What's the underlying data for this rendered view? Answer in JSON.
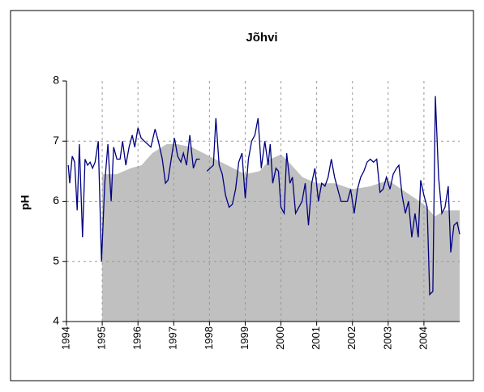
{
  "chart_data": {
    "type": "line",
    "title": "Jõhvi",
    "y_label": "pH",
    "xlim": [
      1994,
      2005
    ],
    "xticks": [
      1994,
      1995,
      1996,
      1997,
      1998,
      1999,
      2000,
      2001,
      2002,
      2003,
      2004
    ],
    "ylim": [
      4,
      8
    ],
    "yticks": [
      4,
      5,
      6,
      7,
      8
    ],
    "grid": true,
    "series": [
      {
        "kind": "area",
        "color": "#c0c0c0",
        "x": [
          1995.0,
          1995.4,
          1995.8,
          1996.1,
          1996.4,
          1996.8,
          1997.1,
          1997.5,
          1998.0,
          1998.5,
          1999.0,
          1999.4,
          1999.7,
          2000.0,
          2000.3,
          2000.6,
          2001.0,
          2001.5,
          2002.0,
          2002.5,
          2003.0,
          2003.5,
          2004.0,
          2004.3,
          2004.6,
          2005.0
        ],
        "values": [
          6.45,
          6.45,
          6.55,
          6.6,
          6.8,
          6.95,
          6.95,
          6.9,
          6.75,
          6.6,
          6.45,
          6.5,
          6.7,
          6.78,
          6.6,
          6.4,
          6.3,
          6.3,
          6.2,
          6.25,
          6.35,
          6.15,
          5.95,
          5.75,
          5.85,
          5.85
        ]
      },
      {
        "kind": "line",
        "color": "#000080",
        "x": [
          1994.05,
          1994.09,
          1994.16,
          1994.23,
          1994.3,
          1994.36,
          1994.45,
          1994.52,
          1994.59,
          1994.66,
          1994.73,
          1994.8,
          1994.89,
          1994.98,
          1995.07,
          1995.16,
          1995.25,
          1995.32,
          1995.41,
          1995.5,
          1995.57,
          1995.66,
          1995.75,
          1995.84,
          1995.91,
          1996.0,
          1996.09,
          1996.18,
          1996.27,
          1996.36,
          1996.48,
          1996.57,
          1996.68,
          1996.77,
          1996.84,
          1996.93,
          1997.02,
          1997.11,
          1997.2,
          1997.27,
          1997.36,
          1997.45,
          1997.55,
          1997.64,
          1997.73,
          1997.83,
          1997.93,
          1998.02,
          1998.11,
          1998.18,
          1998.27,
          1998.36,
          1998.45,
          1998.55,
          1998.64,
          1998.73,
          1998.82,
          1998.91,
          1999.0,
          1999.09,
          1999.18,
          1999.27,
          1999.36,
          1999.45,
          1999.55,
          1999.64,
          1999.7,
          1999.77,
          1999.86,
          1999.93,
          2000.0,
          2000.09,
          2000.16,
          2000.25,
          2000.32,
          2000.41,
          2000.5,
          2000.59,
          2000.68,
          2000.77,
          2000.86,
          2000.95,
          2001.05,
          2001.14,
          2001.23,
          2001.32,
          2001.41,
          2001.5,
          2001.59,
          2001.68,
          2001.77,
          2001.86,
          2001.95,
          2002.05,
          2002.14,
          2002.23,
          2002.32,
          2002.41,
          2002.5,
          2002.59,
          2002.68,
          2002.77,
          2002.86,
          2002.95,
          2003.05,
          2003.14,
          2003.23,
          2003.3,
          2003.39,
          2003.48,
          2003.57,
          2003.66,
          2003.75,
          2003.84,
          2003.91,
          2004.0,
          2004.09,
          2004.16,
          2004.25,
          2004.32,
          2004.41,
          2004.5,
          2004.59,
          2004.68,
          2004.75,
          2004.84,
          2004.93,
          2005.0
        ],
        "values": [
          6.6,
          6.3,
          6.75,
          6.65,
          5.85,
          6.95,
          5.4,
          6.7,
          6.6,
          6.65,
          6.55,
          6.65,
          7.0,
          5.0,
          6.3,
          6.95,
          6.0,
          6.9,
          6.7,
          6.7,
          7.0,
          6.6,
          6.9,
          7.1,
          6.9,
          7.22,
          7.05,
          7.0,
          6.95,
          6.9,
          7.2,
          7.0,
          6.7,
          6.3,
          6.35,
          6.7,
          7.05,
          6.75,
          6.65,
          6.8,
          6.6,
          7.1,
          6.55,
          6.7,
          6.7,
          null,
          6.5,
          6.55,
          6.6,
          7.38,
          6.6,
          6.45,
          6.1,
          5.9,
          5.95,
          6.2,
          6.65,
          6.8,
          6.05,
          6.7,
          7.0,
          7.1,
          7.38,
          6.55,
          7.0,
          6.6,
          6.95,
          6.3,
          6.55,
          6.5,
          5.9,
          5.8,
          6.8,
          6.3,
          6.4,
          5.8,
          5.9,
          6.0,
          6.3,
          5.6,
          6.3,
          6.55,
          6.0,
          6.3,
          6.25,
          6.4,
          6.7,
          6.4,
          6.2,
          6.0,
          6.0,
          6.0,
          6.2,
          5.8,
          6.2,
          6.4,
          6.5,
          6.65,
          6.7,
          6.65,
          6.7,
          6.15,
          6.2,
          6.4,
          6.2,
          6.45,
          6.55,
          6.6,
          6.1,
          5.8,
          6.0,
          5.4,
          5.8,
          5.4,
          6.35,
          6.1,
          5.9,
          4.45,
          4.5,
          7.75,
          6.4,
          5.8,
          5.9,
          6.25,
          5.15,
          5.6,
          5.65,
          5.45
        ]
      }
    ]
  }
}
